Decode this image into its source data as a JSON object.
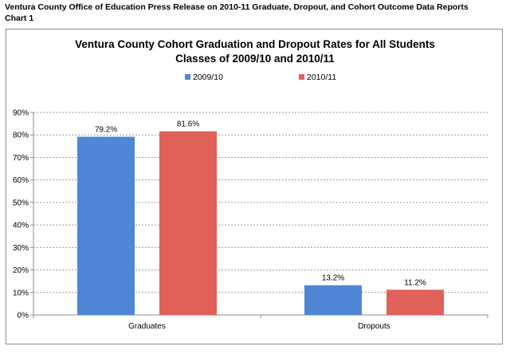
{
  "header": {
    "line1": "Ventura County Office of Education Press Release on 2010-11 Graduate, Dropout, and Cohort Outcome Data Reports",
    "line2": "Chart 1"
  },
  "chart_data": {
    "type": "bar",
    "title": "Ventura County Cohort Graduation and Dropout Rates for All Students",
    "subtitle": "Classes of 2009/10 and 2010/11",
    "categories": [
      "Graduates",
      "Dropouts"
    ],
    "series": [
      {
        "name": "2009/10",
        "values": [
          79.2,
          13.2
        ],
        "labels": [
          "79.2%",
          "13.2%"
        ],
        "color": "#4f86d6"
      },
      {
        "name": "2010/11",
        "values": [
          81.6,
          11.2
        ],
        "labels": [
          "81.6%",
          "11.2%"
        ],
        "color": "#e0605a"
      }
    ],
    "ylim": [
      0,
      90
    ],
    "yticks": [
      "0%",
      "10%",
      "20%",
      "30%",
      "40%",
      "50%",
      "60%",
      "70%",
      "80%",
      "90%"
    ],
    "xlabel": "",
    "ylabel": "",
    "grid": true,
    "legend": "top-center"
  }
}
